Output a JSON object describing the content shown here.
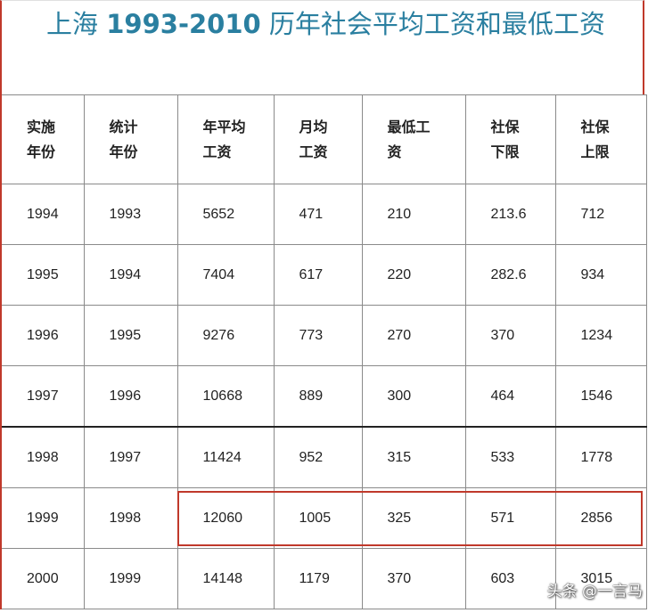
{
  "title": {
    "prefix": "上海 ",
    "years": "1993-2010",
    "suffix": " 历年社会平均工资和最低工资"
  },
  "table": {
    "headers": [
      [
        "实施",
        "年份"
      ],
      [
        "统计",
        "年份"
      ],
      [
        "年平均",
        "工资"
      ],
      [
        "月均",
        "工资"
      ],
      [
        "最低工",
        "资"
      ],
      [
        "社保",
        "下限"
      ],
      [
        "社保",
        "上限"
      ]
    ],
    "rows": [
      [
        "1994",
        "1993",
        "5652",
        "471",
        "210",
        "213.6",
        "712"
      ],
      [
        "1995",
        "1994",
        "7404",
        "617",
        "220",
        "282.6",
        "934"
      ],
      [
        "1996",
        "1995",
        "9276",
        "773",
        "270",
        "370",
        "1234"
      ],
      [
        "1997",
        "1996",
        "10668",
        "889",
        "300",
        "464",
        "1546"
      ],
      [
        "1998",
        "1997",
        "11424",
        "952",
        "315",
        "533",
        "1778"
      ],
      [
        "1999",
        "1998",
        "12060",
        "1005",
        "325",
        "571",
        "2856"
      ],
      [
        "2000",
        "1999",
        "14148",
        "1179",
        "370",
        "603",
        "3015"
      ]
    ]
  },
  "watermark": "头条 @一言马",
  "colors": {
    "title": "#2a7fa0",
    "highlight": "#c0392b",
    "grid": "#8a8a8a"
  }
}
